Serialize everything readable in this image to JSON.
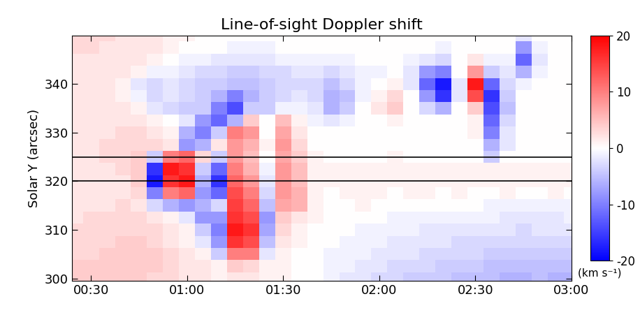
{
  "chart_data": {
    "type": "heatmap",
    "title": "Line-of-sight Doppler shift",
    "y_label": "Solar Y (arcsec)",
    "x": [
      25,
      30,
      35,
      40,
      45,
      50,
      55,
      60,
      65,
      70,
      75,
      80,
      85,
      90,
      95,
      100,
      105,
      110,
      115,
      120,
      125,
      130,
      135,
      140,
      145,
      150,
      155,
      160,
      165,
      170,
      175,
      180
    ],
    "y": [
      300,
      302.5,
      305,
      307.5,
      310,
      312.5,
      315,
      317.5,
      320,
      322.5,
      325,
      327.5,
      330,
      332.5,
      335,
      337.5,
      340,
      342.5,
      345,
      347.5,
      350
    ],
    "values": [
      [
        4,
        4,
        4,
        4,
        4,
        3,
        3,
        2,
        2,
        1,
        2,
        2,
        1,
        1,
        0,
        0,
        -1,
        -2,
        -2,
        -3,
        -3,
        -4,
        -4,
        -4,
        -5,
        -5,
        -5,
        -6,
        -6,
        -5,
        -6,
        -6
      ],
      [
        4,
        4,
        4,
        4,
        4,
        4,
        3,
        2,
        2,
        1,
        4,
        3,
        1,
        1,
        0,
        0,
        -1,
        -1,
        -2,
        -2,
        -3,
        -3,
        -3,
        -4,
        -4,
        -4,
        -5,
        -5,
        -5,
        -5,
        -5,
        -5
      ],
      [
        3,
        3,
        4,
        4,
        4,
        4,
        3,
        2,
        1,
        -4,
        10,
        10,
        -2,
        1,
        0,
        0,
        -1,
        -1,
        -1,
        -2,
        -2,
        -2,
        -3,
        -3,
        -3,
        -3,
        -4,
        -4,
        -4,
        -4,
        -4,
        -4
      ],
      [
        3,
        3,
        3,
        4,
        4,
        3,
        2,
        1,
        -2,
        -8,
        16,
        14,
        -5,
        2,
        1,
        0,
        0,
        -1,
        -1,
        -1,
        -2,
        -2,
        -2,
        -2,
        -3,
        -3,
        -3,
        -3,
        -3,
        -3,
        -3,
        -3
      ],
      [
        3,
        3,
        3,
        3,
        3,
        3,
        2,
        1,
        -4,
        -10,
        18,
        16,
        -7,
        3,
        1,
        0,
        0,
        0,
        -1,
        -1,
        -1,
        -1,
        -2,
        -2,
        -2,
        -2,
        -2,
        -2,
        -3,
        -2,
        -2,
        -2
      ],
      [
        2,
        3,
        3,
        3,
        3,
        2,
        1,
        -2,
        -8,
        -8,
        16,
        14,
        -8,
        4,
        2,
        1,
        0,
        0,
        0,
        0,
        -1,
        -1,
        -1,
        -1,
        -1,
        -1,
        -1,
        -2,
        -2,
        -2,
        -2,
        -1
      ],
      [
        2,
        2,
        2,
        3,
        2,
        -3,
        -6,
        -8,
        -6,
        -3,
        15,
        12,
        -5,
        7,
        6,
        1,
        0,
        0,
        1,
        0,
        0,
        0,
        0,
        0,
        0,
        0,
        -1,
        -1,
        -1,
        -1,
        -1,
        -1
      ],
      [
        2,
        2,
        2,
        2,
        3,
        -10,
        10,
        12,
        -8,
        -12,
        14,
        10,
        -3,
        8,
        6,
        1,
        0,
        1,
        1,
        1,
        0,
        1,
        1,
        0,
        1,
        0,
        0,
        1,
        0,
        0,
        1,
        0
      ],
      [
        2,
        2,
        2,
        2,
        4,
        -18,
        16,
        18,
        -6,
        -16,
        12,
        8,
        -2,
        8,
        5,
        1,
        1,
        1,
        1,
        1,
        1,
        1,
        1,
        1,
        1,
        1,
        1,
        1,
        1,
        1,
        1,
        1
      ],
      [
        2,
        2,
        2,
        3,
        4,
        -16,
        18,
        16,
        -4,
        -12,
        10,
        6,
        -1,
        8,
        5,
        1,
        1,
        1,
        1,
        1,
        1,
        1,
        1,
        1,
        1,
        1,
        1,
        1,
        1,
        1,
        1,
        1
      ],
      [
        2,
        2,
        3,
        3,
        4,
        -4,
        10,
        12,
        3,
        -4,
        8,
        5,
        0,
        7,
        4,
        1,
        0,
        0,
        0,
        0,
        1,
        0,
        0,
        0,
        0,
        0,
        -4,
        0,
        0,
        0,
        0,
        0
      ],
      [
        2,
        2,
        3,
        3,
        3,
        3,
        2,
        -8,
        -6,
        2,
        8,
        6,
        1,
        8,
        3,
        0,
        0,
        0,
        0,
        0,
        0,
        0,
        0,
        0,
        0,
        0,
        -6,
        -2,
        0,
        0,
        0,
        0
      ],
      [
        2,
        2,
        2,
        3,
        3,
        2,
        1,
        -6,
        -10,
        -4,
        10,
        8,
        0,
        7,
        2,
        0,
        0,
        0,
        0,
        0,
        0,
        0,
        0,
        0,
        0,
        1,
        -10,
        -2,
        0,
        0,
        0,
        0
      ],
      [
        2,
        2,
        2,
        2,
        2,
        1,
        0,
        -2,
        -8,
        -12,
        -6,
        4,
        0,
        5,
        1,
        -1,
        -2,
        -1,
        0,
        0,
        1,
        0,
        0,
        0,
        0,
        1,
        -12,
        -3,
        0,
        0,
        0,
        0
      ],
      [
        2,
        2,
        2,
        2,
        1,
        -2,
        -3,
        -4,
        -4,
        -10,
        -14,
        -4,
        -4,
        -1,
        -1,
        -2,
        -6,
        -4,
        0,
        2,
        4,
        0,
        -3,
        -6,
        0,
        4,
        -14,
        -5,
        0,
        0,
        0,
        0
      ],
      [
        2,
        2,
        2,
        1,
        -1,
        -3,
        -2,
        -3,
        -4,
        -6,
        -10,
        -6,
        -4,
        -3,
        -2,
        -3,
        -6,
        -5,
        -1,
        1,
        3,
        0,
        -8,
        -16,
        -2,
        14,
        -16,
        -4,
        0,
        0,
        0,
        0
      ],
      [
        2,
        2,
        2,
        1,
        -2,
        -3,
        -2,
        -3,
        -4,
        -4,
        -5,
        -5,
        -4,
        -3,
        -3,
        -3,
        -5,
        -3,
        -1,
        0,
        1,
        -2,
        -12,
        -18,
        -2,
        18,
        -12,
        -3,
        -1,
        0,
        0,
        0
      ],
      [
        2,
        2,
        2,
        2,
        1,
        -1,
        -1,
        -2,
        -3,
        -3,
        -4,
        -4,
        -3,
        -3,
        -2,
        -2,
        -3,
        -2,
        -1,
        -1,
        0,
        -2,
        -8,
        -10,
        0,
        8,
        -4,
        -2,
        -6,
        -1,
        0,
        0
      ],
      [
        2,
        2,
        2,
        2,
        2,
        1,
        0,
        -1,
        -1,
        -2,
        -2,
        -2,
        -2,
        -1,
        -1,
        -1,
        -1,
        -1,
        0,
        0,
        0,
        -1,
        -2,
        -3,
        0,
        2,
        -1,
        -1,
        -12,
        -2,
        0,
        0
      ],
      [
        3,
        3,
        2,
        2,
        2,
        2,
        1,
        0,
        0,
        0,
        -1,
        -1,
        -1,
        0,
        0,
        0,
        0,
        0,
        0,
        0,
        0,
        0,
        0,
        -1,
        0,
        0,
        0,
        0,
        -8,
        -1,
        0,
        0
      ],
      [
        3,
        3,
        3,
        2,
        2,
        2,
        1,
        1,
        0,
        0,
        0,
        0,
        0,
        0,
        0,
        0,
        0,
        0,
        0,
        0,
        0,
        0,
        0,
        0,
        0,
        0,
        0,
        0,
        -2,
        0,
        0,
        0
      ]
    ],
    "xlim": [
      24,
      180
    ],
    "xticks": [
      {
        "value": 30,
        "label": "00:30"
      },
      {
        "value": 60,
        "label": "01:00"
      },
      {
        "value": 90,
        "label": "01:30"
      },
      {
        "value": 120,
        "label": "02:00"
      },
      {
        "value": 150,
        "label": "02:30"
      },
      {
        "value": 180,
        "label": "03:00"
      }
    ],
    "ylim": [
      299.5,
      350
    ],
    "yticks": [
      300,
      310,
      320,
      330,
      340
    ],
    "reference_lines": [
      320,
      325
    ],
    "colorbar": {
      "range": [
        -20,
        20
      ],
      "ticks": [
        -20,
        -10,
        0,
        10,
        20
      ],
      "label": "(km s⁻¹)"
    }
  }
}
